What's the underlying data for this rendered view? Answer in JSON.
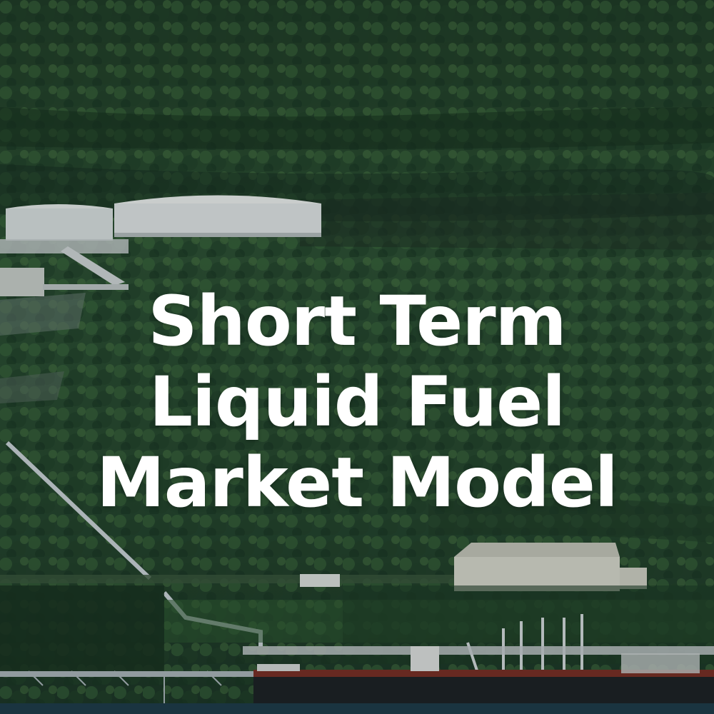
{
  "title": {
    "lines": [
      "Short Term",
      "Liquid Fuel",
      "Market Model"
    ]
  },
  "colors": {
    "forest_dark": "#14291d",
    "forest_mid": "#2f5a36",
    "forest_light": "#4c7a44",
    "tank_white": "#e8ecee",
    "building": "#dcdcd2",
    "water": "#1d3a4a",
    "ship_hull": "#1b1f24",
    "ship_deck": "#7a2c24",
    "text": "#ffffff"
  }
}
